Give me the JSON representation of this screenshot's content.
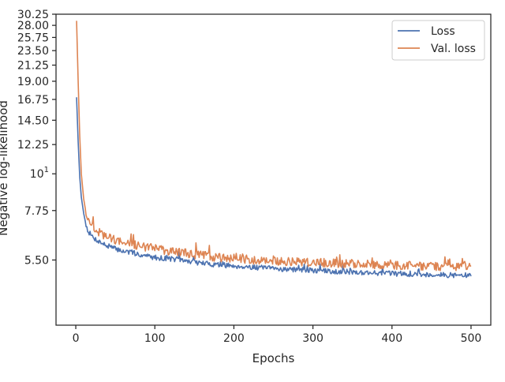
{
  "colors": {
    "loss": "#4c72b0",
    "val_loss": "#dd8452",
    "axis": "#262626"
  },
  "chart_data": {
    "type": "line",
    "title": "",
    "xlabel": "Epochs",
    "ylabel": "Negative log-likelihood",
    "xlim": [
      -25,
      525
    ],
    "ylim": [
      3.5,
      30.25
    ],
    "yscale": "log",
    "xticks": [
      0,
      100,
      200,
      300,
      400,
      500
    ],
    "xtick_labels": [
      "0",
      "100",
      "200",
      "300",
      "400",
      "500"
    ],
    "yticks": [
      5.5,
      7.75,
      10,
      12.25,
      14.5,
      16.75,
      19,
      21.25,
      23.5,
      25.75,
      28,
      30.25
    ],
    "ytick_labels": [
      "5.50",
      "7.75",
      "10^1",
      "12.25",
      "14.50",
      "16.75",
      "19.00",
      "21.25",
      "23.50",
      "25.75",
      "28.00",
      "30.25"
    ],
    "grid": false,
    "legend": "top-right",
    "series": [
      {
        "name": "Loss",
        "color": "#4c72b0",
        "x": [
          1,
          3,
          5,
          7,
          10,
          13,
          16,
          20,
          25,
          30,
          40,
          50,
          60,
          70,
          80,
          90,
          100,
          110,
          120,
          130,
          140,
          150,
          160,
          170,
          180,
          190,
          200,
          220,
          240,
          260,
          280,
          300,
          320,
          340,
          360,
          380,
          400,
          420,
          440,
          460,
          480,
          500
        ],
        "y": [
          17.0,
          12.5,
          9.8,
          8.5,
          7.6,
          7.0,
          6.7,
          6.5,
          6.35,
          6.25,
          6.05,
          5.95,
          5.85,
          5.8,
          5.72,
          5.65,
          5.6,
          5.57,
          5.55,
          5.5,
          5.46,
          5.42,
          5.38,
          5.35,
          5.32,
          5.3,
          5.28,
          5.24,
          5.2,
          5.17,
          5.14,
          5.11,
          5.09,
          5.07,
          5.05,
          5.03,
          5.01,
          4.99,
          4.97,
          4.96,
          4.95,
          4.94
        ],
        "noise": 0.018
      },
      {
        "name": "Val. loss",
        "color": "#dd8452",
        "x": [
          1,
          3,
          5,
          7,
          10,
          13,
          16,
          20,
          25,
          30,
          40,
          50,
          60,
          70,
          80,
          90,
          100,
          110,
          120,
          130,
          140,
          150,
          160,
          170,
          180,
          190,
          200,
          220,
          240,
          260,
          280,
          300,
          320,
          340,
          360,
          380,
          400,
          420,
          440,
          460,
          480,
          500
        ],
        "y": [
          28.9,
          19.0,
          13.0,
          10.0,
          8.4,
          7.6,
          7.2,
          7.0,
          6.8,
          6.65,
          6.45,
          6.32,
          6.22,
          6.15,
          6.08,
          6.02,
          5.95,
          5.9,
          5.85,
          5.8,
          5.76,
          5.72,
          5.68,
          5.64,
          5.6,
          5.58,
          5.56,
          5.52,
          5.49,
          5.46,
          5.43,
          5.41,
          5.39,
          5.37,
          5.35,
          5.33,
          5.31,
          5.29,
          5.28,
          5.27,
          5.26,
          5.25
        ],
        "noise": 0.03
      }
    ]
  }
}
